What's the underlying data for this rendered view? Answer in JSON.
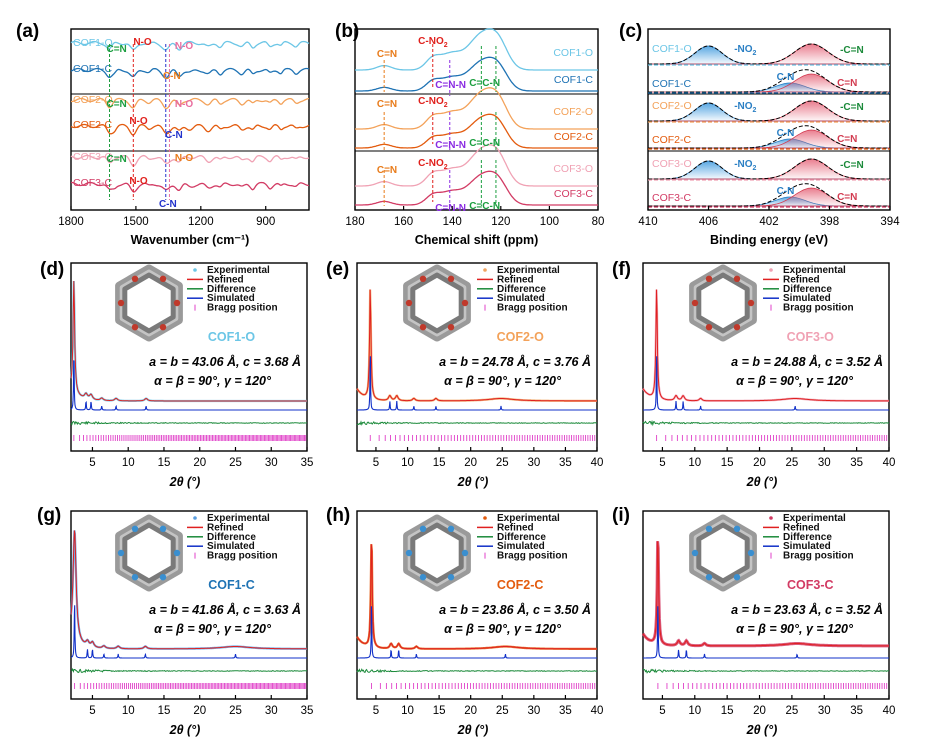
{
  "colors": {
    "COF1-O": "#6cc6e6",
    "COF1-C": "#1f73b4",
    "COF2-O": "#f3a25a",
    "COF2-C": "#e35b0e",
    "COF3-O": "#f0a2b4",
    "COF3-C": "#d23b64",
    "green": "#1b9e3f",
    "red": "#e0201c",
    "blue": "#2233cc",
    "orange": "#e87b1a",
    "purple": "#8a2be2"
  },
  "chart_data": [
    {
      "panel": "(a)",
      "type": "line",
      "xlabel": "Wavenumber (cm⁻¹)",
      "xlim": [
        1800,
        700
      ],
      "xticks": [
        "1800",
        "1500",
        "1200",
        "900"
      ],
      "series": [
        {
          "name": "COF1-O"
        },
        {
          "name": "COF1-C"
        },
        {
          "name": "COF2-O"
        },
        {
          "name": "COF2-C"
        },
        {
          "name": "COF3-O"
        },
        {
          "name": "COF3-C"
        }
      ],
      "peaks": {
        "C=N": 1622,
        "N-O": 1512,
        "C-N": 1362,
        "N-O_2": 1345
      },
      "annotations": [
        "C=N",
        "N-O",
        "C-N",
        "N-O",
        "C=N",
        "N-O",
        "C-N",
        "N-O",
        "C=N",
        "N-O",
        "C-N",
        "N-O"
      ]
    },
    {
      "panel": "(b)",
      "type": "line",
      "xlabel": "Chemical shift (ppm)",
      "xlim": [
        180,
        80
      ],
      "xticks": [
        "180",
        "160",
        "140",
        "120",
        "100",
        "80"
      ],
      "series": [
        {
          "name": "COF1-O"
        },
        {
          "name": "COF1-C"
        },
        {
          "name": "COF2-O"
        },
        {
          "name": "COF2-C"
        },
        {
          "name": "COF3-O"
        },
        {
          "name": "COF3-C"
        }
      ],
      "peaks": {
        "C=N": 168,
        "C-NO2": 148,
        "C=N-N": 141,
        "C=C-N": 122
      },
      "annotations": [
        "C=N",
        "C-NO",
        "C=N-N",
        "C=C-N"
      ]
    },
    {
      "panel": "(c)",
      "type": "area",
      "xlabel": "Binding energy (eV)",
      "xlim": [
        410,
        394
      ],
      "xticks": [
        "410",
        "406",
        "402",
        "398",
        "394"
      ],
      "series": [
        {
          "name": "COF1-O"
        },
        {
          "name": "COF1-C"
        },
        {
          "name": "COF2-O"
        },
        {
          "name": "COF2-C"
        },
        {
          "name": "COF3-O"
        },
        {
          "name": "COF3-C"
        }
      ],
      "peaks": {
        "-NO2": 406.0,
        "-C=N": 399.2,
        "C-N": 400.6,
        "C=N": 399.2
      },
      "annotations": [
        "-NO",
        "-C=N",
        "C-N",
        "C=N"
      ]
    },
    {
      "panel": "(d)",
      "type": "line",
      "name": "COF1-O",
      "xlabel": "2θ (°)",
      "xlim": [
        2,
        35
      ],
      "xticks": [
        "5",
        "10",
        "15",
        "20",
        "25",
        "30",
        "35"
      ],
      "lattice_abc": "a = b = 43.06 Å, c = 3.68 Å",
      "lattice_angles": "α = β = 90°,   γ = 120°",
      "main_peak": 2.4,
      "peaks": [
        2.4,
        4.1,
        4.8,
        6.3,
        8.3,
        12.5
      ]
    },
    {
      "panel": "(e)",
      "type": "line",
      "name": "COF2-O",
      "xlabel": "2θ (°)",
      "xlim": [
        2,
        40
      ],
      "xticks": [
        "5",
        "10",
        "15",
        "20",
        "25",
        "30",
        "35",
        "40"
      ],
      "lattice_abc": "a = b = 24.78 Å, c = 3.76 Å",
      "lattice_angles": "α = β = 90°,   γ = 120°",
      "main_peak": 4.1,
      "peaks": [
        4.1,
        7.2,
        8.3,
        11.0,
        14.5,
        24.8
      ]
    },
    {
      "panel": "(f)",
      "type": "line",
      "name": "COF3-O",
      "xlabel": "2θ (°)",
      "xlim": [
        2,
        40
      ],
      "xticks": [
        "5",
        "10",
        "15",
        "20",
        "25",
        "30",
        "35",
        "40"
      ],
      "lattice_abc": "a = b = 24.88 Å, c = 3.52 Å",
      "lattice_angles": "α = β = 90°,   γ = 120°",
      "main_peak": 4.1,
      "peaks": [
        4.1,
        7.1,
        8.2,
        10.9,
        25.5
      ]
    },
    {
      "panel": "(g)",
      "type": "line",
      "name": "COF1-C",
      "xlabel": "2θ (°)",
      "xlim": [
        2,
        35
      ],
      "xticks": [
        "5",
        "10",
        "15",
        "20",
        "25",
        "30",
        "35"
      ],
      "lattice_abc": "a = b = 41.86 Å, c = 3.63 Å",
      "lattice_angles": "α = β = 90°,   γ = 120°",
      "main_peak": 2.5,
      "peaks": [
        2.5,
        4.3,
        5.0,
        6.6,
        8.6,
        12.4,
        25.0
      ]
    },
    {
      "panel": "(h)",
      "type": "line",
      "name": "COF2-C",
      "xlabel": "2θ (°)",
      "xlim": [
        2,
        40
      ],
      "xticks": [
        "5",
        "10",
        "15",
        "20",
        "25",
        "30",
        "35",
        "40"
      ],
      "lattice_abc": "a = b = 23.86 Å, c = 3.50 Å",
      "lattice_angles": "α = β = 90°,   γ = 120°",
      "main_peak": 4.3,
      "peaks": [
        4.3,
        7.4,
        8.6,
        11.4,
        25.5
      ]
    },
    {
      "panel": "(i)",
      "type": "line",
      "name": "COF3-C",
      "xlabel": "2θ (°)",
      "xlim": [
        2,
        40
      ],
      "xticks": [
        "5",
        "10",
        "15",
        "20",
        "25",
        "30",
        "35",
        "40"
      ],
      "lattice_abc": "a = b = 23.63 Å, c = 3.52 Å",
      "lattice_angles": "α = β = 90°,   γ = 120°",
      "main_peak": 4.3,
      "peaks": [
        4.3,
        7.5,
        8.7,
        11.5,
        25.8
      ]
    }
  ],
  "xrd_legend": [
    "Experimental",
    "Refined",
    "Difference",
    "Simulated",
    "Bragg position"
  ]
}
